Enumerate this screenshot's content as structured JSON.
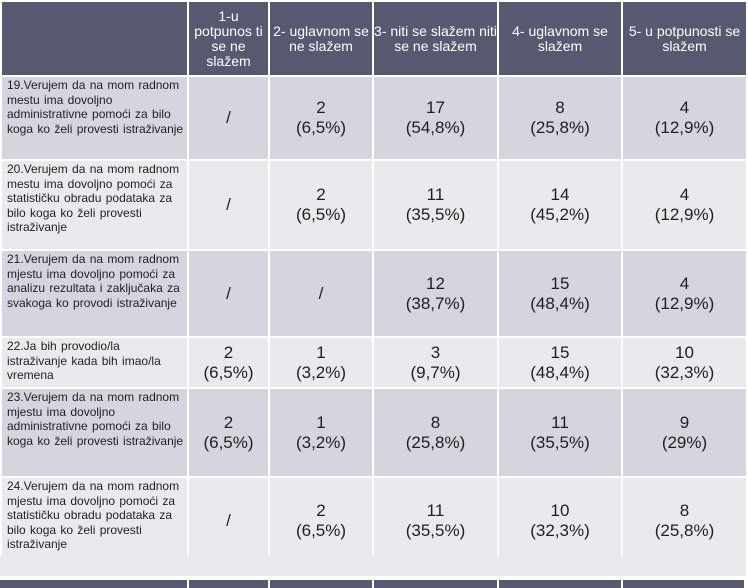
{
  "header": {
    "statement": "",
    "col1": "1-u potpunos ti se ne slažem",
    "col2": "2- uglavnom se ne slažem",
    "col3": "3- niti se slažem niti se ne slažem",
    "col4": "4- uglavnom se slažem",
    "col5": "5- u potpunosti se slažem"
  },
  "rows": [
    {
      "statement": "19.Verujem da na mom radnom mestu ima dovoljno administrativne pomoći za bilo koga ko želi provesti istraživanje",
      "values": [
        {
          "count": "/",
          "pct": ""
        },
        {
          "count": "2",
          "pct": "(6,5%)"
        },
        {
          "count": "17",
          "pct": "(54,8%)"
        },
        {
          "count": "8",
          "pct": "(25,8%)"
        },
        {
          "count": "4",
          "pct": "(12,9%)"
        }
      ]
    },
    {
      "statement": "20.Verujem da na mom radnom mestu ima dovoljno pomoći za statističku obradu podataka za bilo koga ko želi provesti istraživanje",
      "values": [
        {
          "count": "/",
          "pct": ""
        },
        {
          "count": "2",
          "pct": "(6,5%)"
        },
        {
          "count": "11",
          "pct": "(35,5%)"
        },
        {
          "count": "14",
          "pct": "(45,2%)"
        },
        {
          "count": "4",
          "pct": "(12,9%)"
        }
      ]
    },
    {
      "statement": "21.Verujem da na mom radnom mjestu ima dovoljno pomoći za analizu rezultata i zaključaka za svakoga ko provodi istraživanje",
      "values": [
        {
          "count": "/",
          "pct": ""
        },
        {
          "count": "/",
          "pct": ""
        },
        {
          "count": "12",
          "pct": "(38,7%)"
        },
        {
          "count": "15",
          "pct": "(48,4%)"
        },
        {
          "count": "4",
          "pct": "(12,9%)"
        }
      ]
    },
    {
      "statement": "22.Ja bih provodio/la istraživanje kada bih imao/la vremena",
      "values": [
        {
          "count": "2",
          "pct": "(6,5%)"
        },
        {
          "count": "1",
          "pct": "(3,2%)"
        },
        {
          "count": "3",
          "pct": "(9,7%)"
        },
        {
          "count": "15",
          "pct": "(48,4%)"
        },
        {
          "count": "10",
          "pct": "(32,3%)"
        }
      ]
    },
    {
      "statement": "23.Verujem da na mom radnom mjestu ima dovoljno administrativne pomoći za bilo koga ko želi provesti istraživanje",
      "values": [
        {
          "count": "2",
          "pct": "(6,5%)"
        },
        {
          "count": "1",
          "pct": "(3,2%)"
        },
        {
          "count": "8",
          "pct": "(25,8%)"
        },
        {
          "count": "11",
          "pct": "(35,5%)"
        },
        {
          "count": "9",
          "pct": "(29%)"
        }
      ]
    },
    {
      "statement": "24.Verujem da na mom radnom mjestu ima dovoljno pomoći za statističku obradu podataka za bilo koga ko želi provesti istraživanje",
      "values": [
        {
          "count": "/",
          "pct": ""
        },
        {
          "count": "2",
          "pct": "(6,5%)"
        },
        {
          "count": "11",
          "pct": "(35,5%)"
        },
        {
          "count": "10",
          "pct": "(32,3%)"
        },
        {
          "count": "8",
          "pct": "(25,8%)"
        }
      ]
    }
  ],
  "colors": {
    "header_bg": "#56596f",
    "row_dark": "#d4d5df",
    "row_light": "#eaeaee"
  }
}
